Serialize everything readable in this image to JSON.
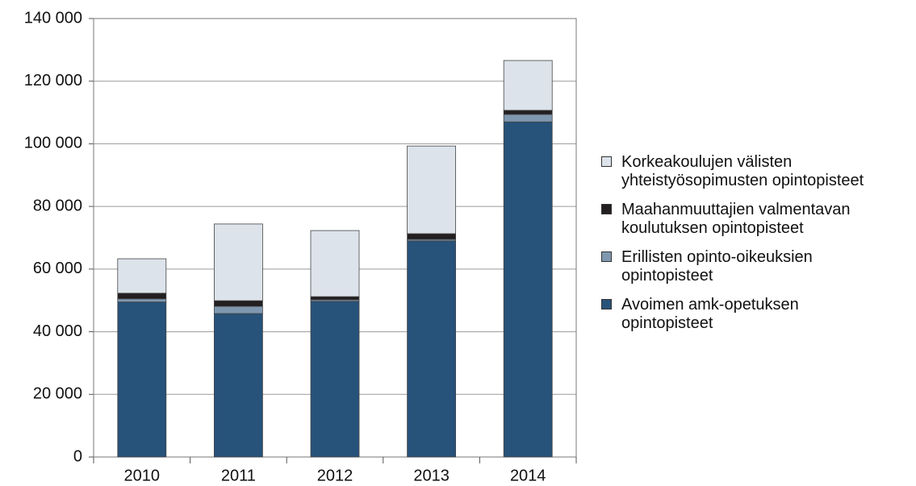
{
  "chart_data": {
    "type": "bar",
    "stacked": true,
    "categories": [
      "2010",
      "2011",
      "2012",
      "2013",
      "2014"
    ],
    "series": [
      {
        "name": "Avoimen amk-opetuksen\nopintopisteet",
        "color": "#27527a",
        "values": [
          49500,
          45800,
          49700,
          69000,
          107000
        ]
      },
      {
        "name": "Erillisten opinto-oikeuksien\nopintopisteet",
        "color": "#7f98b0",
        "values": [
          1000,
          2300,
          500,
          500,
          2400
        ]
      },
      {
        "name": "Maahanmuuttajien valmentavan\nkoulutuksen opintopisteet",
        "color": "#231f20",
        "values": [
          1800,
          1800,
          1000,
          1800,
          1300
        ]
      },
      {
        "name": "Korkeakoulujen välisten\nyhteistyösopimusten opintopisteet",
        "color": "#dde3ea",
        "values": [
          11000,
          24500,
          21100,
          28000,
          15900
        ]
      }
    ],
    "ylim": [
      0,
      140000
    ],
    "yticks": [
      0,
      {
        "value": 20000,
        "label": "20 000"
      },
      {
        "value": 40000,
        "label": "40 000"
      },
      {
        "value": 60000,
        "label": "60 000"
      },
      {
        "value": 80000,
        "label": "80 000"
      },
      {
        "value": 100000,
        "label": "100 000"
      },
      {
        "value": 120000,
        "label": "120 000"
      },
      {
        "value": 140000,
        "label": "140 000"
      }
    ],
    "grid": true,
    "legend": "right"
  }
}
